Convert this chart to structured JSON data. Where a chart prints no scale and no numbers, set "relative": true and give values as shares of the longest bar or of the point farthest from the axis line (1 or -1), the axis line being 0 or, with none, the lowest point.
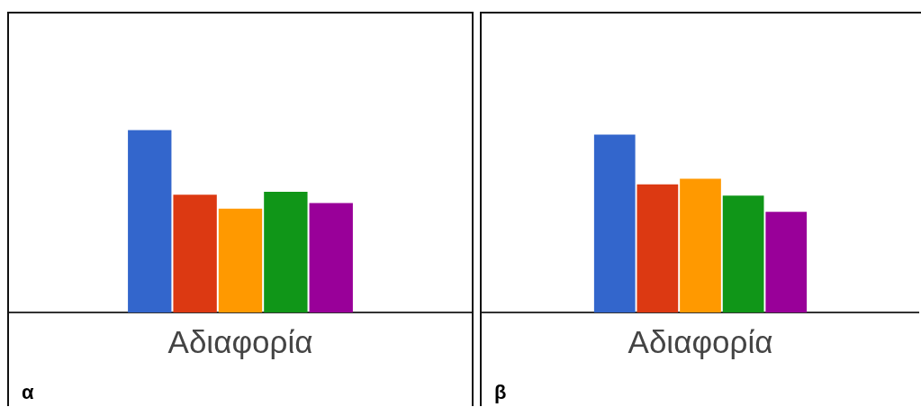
{
  "chart_data": [
    {
      "type": "bar",
      "categories": [
        "Αδιαφορία"
      ],
      "relative": true,
      "legend": false,
      "tick_labels": "x",
      "annotations": [
        "α"
      ],
      "series": [
        {
          "color": "#3366cc",
          "values": [
            1
          ]
        },
        {
          "color": "#dc3912",
          "values": [
            0.646
          ]
        },
        {
          "color": "#ff9900",
          "values": [
            0.569
          ]
        },
        {
          "color": "#109618",
          "values": [
            0.662
          ]
        },
        {
          "color": "#990099",
          "values": [
            0.6
          ]
        }
      ]
    },
    {
      "type": "bar",
      "categories": [
        "Αδιαφορία"
      ],
      "relative": true,
      "legend": false,
      "tick_labels": "x",
      "annotations": [
        "β"
      ],
      "series": [
        {
          "color": "#3366cc",
          "values": [
            1
          ]
        },
        {
          "color": "#dc3912",
          "values": [
            0.72
          ]
        },
        {
          "color": "#ff9900",
          "values": [
            0.751
          ]
        },
        {
          "color": "#109618",
          "values": [
            0.656
          ]
        },
        {
          "color": "#990099",
          "values": [
            0.566
          ]
        }
      ]
    }
  ]
}
